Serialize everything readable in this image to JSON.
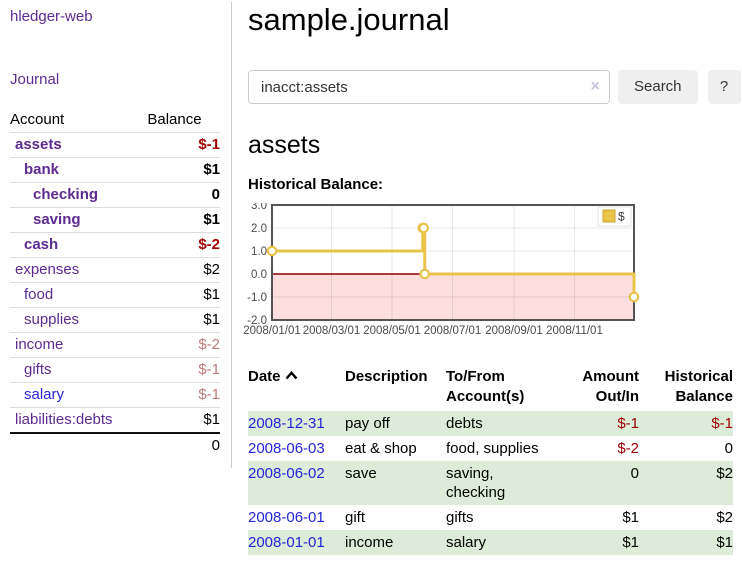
{
  "app": {
    "title": "hledger-web",
    "nav_journal": "Journal"
  },
  "sidebar": {
    "accounts_table": {
      "col_account": "Account",
      "col_balance": "Balance",
      "rows": [
        {
          "name": "assets",
          "balance": "$-1",
          "depth": 1
        },
        {
          "name": "bank",
          "balance": "$1",
          "depth": 2
        },
        {
          "name": "checking",
          "balance": "0",
          "depth": 3
        },
        {
          "name": "saving",
          "balance": "$1",
          "depth": 3
        },
        {
          "name": "cash",
          "balance": "$-2",
          "depth": 2
        },
        {
          "name": "expenses",
          "balance": "$2",
          "depth": 1
        },
        {
          "name": "food",
          "balance": "$1",
          "depth": 2
        },
        {
          "name": "supplies",
          "balance": "$1",
          "depth": 2
        },
        {
          "name": "income",
          "balance": "$-2",
          "depth": 1
        },
        {
          "name": "gifts",
          "balance": "$-1",
          "depth": 2
        },
        {
          "name": "salary",
          "balance": "$-1",
          "depth": 2
        },
        {
          "name": "liabilities:debts",
          "balance": "$1",
          "depth": 1
        }
      ],
      "total": "0"
    }
  },
  "main": {
    "page_title": "sample.journal",
    "search": {
      "value": "inacct:assets",
      "clear_icon": "×",
      "button": "Search",
      "help_button": "?"
    },
    "account_heading": "assets",
    "chart_label": "Historical Balance:",
    "register_table": {
      "headers": {
        "date": "Date",
        "description": "Description",
        "tofrom": "To/From Account(s)",
        "amount": "Amount Out/In",
        "balance": "Historical Balance"
      },
      "rows": [
        {
          "date": "2008-12-31",
          "description": "pay off",
          "accounts": "debts",
          "amount": "$-1",
          "balance": "$-1"
        },
        {
          "date": "2008-06-03",
          "description": "eat & shop",
          "accounts": "food, supplies",
          "amount": "$-2",
          "balance": "0"
        },
        {
          "date": "2008-06-02",
          "description": "save",
          "accounts": "saving, checking",
          "amount": "0",
          "balance": "$2"
        },
        {
          "date": "2008-06-01",
          "description": "gift",
          "accounts": "gifts",
          "amount": "$1",
          "balance": "$2"
        },
        {
          "date": "2008-01-01",
          "description": "income",
          "accounts": "salary",
          "amount": "$1",
          "balance": "$1"
        }
      ]
    }
  },
  "chart_data": {
    "type": "line",
    "title": "Historical Balance",
    "legend": "$",
    "legend_position": "top-right",
    "step": true,
    "grid": true,
    "ylim": [
      -2,
      3
    ],
    "x_domain_days": [
      0,
      365
    ],
    "series": [
      {
        "name": "$",
        "points": [
          {
            "date": "2008-01-01",
            "d": 0,
            "v": 1
          },
          {
            "date": "2008-06-01",
            "d": 152,
            "v": 2
          },
          {
            "date": "2008-06-02",
            "d": 153,
            "v": 2
          },
          {
            "date": "2008-06-03",
            "d": 154,
            "v": 0
          },
          {
            "date": "2008-12-31",
            "d": 365,
            "v": -1
          }
        ]
      }
    ],
    "x_ticks": [
      {
        "d": 0,
        "label": "2008/01/01"
      },
      {
        "d": 60,
        "label": "2008/03/01"
      },
      {
        "d": 121,
        "label": "2008/05/01"
      },
      {
        "d": 182,
        "label": "2008/07/01"
      },
      {
        "d": 244,
        "label": "2008/09/01"
      },
      {
        "d": 305,
        "label": "2008/11/01"
      }
    ],
    "y_ticks": [
      {
        "v": 3,
        "label": "3.0"
      },
      {
        "v": 2,
        "label": "2.0"
      },
      {
        "v": 1,
        "label": "1.0"
      },
      {
        "v": 0,
        "label": "0.0"
      },
      {
        "v": -1,
        "label": "-1.0"
      },
      {
        "v": -2,
        "label": "-2.0"
      }
    ],
    "colors": {
      "line": "#e8c44a",
      "marker_fill": "#ffffff",
      "negative_region_fill": "#fcdede",
      "zero_line": "#8b0000",
      "plot_border": "#545454"
    }
  }
}
